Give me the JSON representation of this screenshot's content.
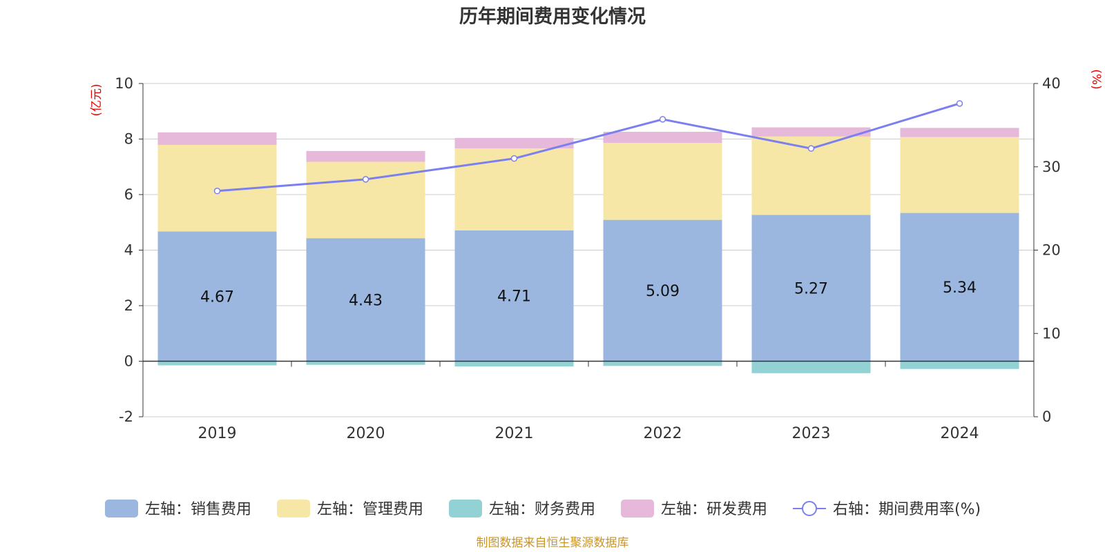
{
  "chart_data": {
    "type": "bar",
    "title": "历年期间费用变化情况",
    "left_axis_unit": "(亿元)",
    "right_axis_unit": "(%)",
    "categories": [
      "2019",
      "2020",
      "2021",
      "2022",
      "2023",
      "2024"
    ],
    "left_ylim": [
      -2,
      10
    ],
    "left_ticks": [
      "-2",
      "0",
      "2",
      "4",
      "6",
      "8",
      "10"
    ],
    "right_ylim": [
      0,
      40
    ],
    "right_ticks": [
      "0",
      "10",
      "20",
      "30",
      "40"
    ],
    "grid": true,
    "legend_position": "bottom",
    "series": [
      {
        "name": "左轴：销售费用",
        "axis": "left",
        "color": "#9bb7e0",
        "values": [
          4.67,
          4.43,
          4.71,
          5.09,
          5.27,
          5.34
        ]
      },
      {
        "name": "左轴：管理费用",
        "axis": "left",
        "color": "#f7e7a6",
        "values": [
          3.12,
          2.75,
          2.95,
          2.77,
          2.82,
          2.73
        ]
      },
      {
        "name": "左轴：财务费用",
        "axis": "left",
        "color": "#93d2d4",
        "values": [
          -0.15,
          -0.13,
          -0.19,
          -0.17,
          -0.43,
          -0.28
        ]
      },
      {
        "name": "左轴：研发费用",
        "axis": "left",
        "color": "#e6b8d9",
        "values": [
          0.45,
          0.39,
          0.38,
          0.4,
          0.33,
          0.33
        ]
      },
      {
        "name": "右轴：期间费用率(%)",
        "axis": "right",
        "type": "line",
        "color": "#7b7fef",
        "values": [
          27.1,
          28.5,
          31.0,
          35.7,
          32.2,
          37.6
        ]
      }
    ],
    "data_labels": [
      "4.67",
      "4.43",
      "4.71",
      "5.09",
      "5.27",
      "5.34"
    ],
    "source": "制图数据来自恒生聚源数据库"
  }
}
